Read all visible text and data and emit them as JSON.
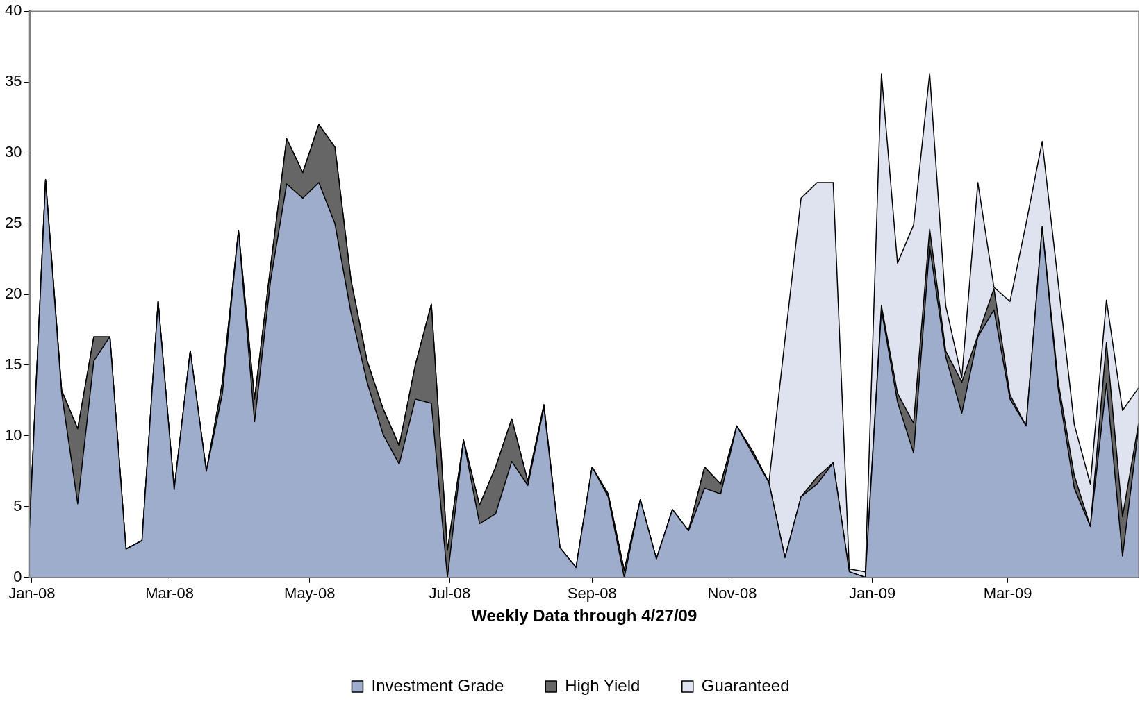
{
  "chart_data": {
    "type": "area",
    "stacked": true,
    "xlabel": "Weekly Data through 4/27/09",
    "legend": "bottom",
    "grid": false,
    "marker": "none",
    "x": [
      "2007-12-31",
      "2008-01-07",
      "2008-01-14",
      "2008-01-21",
      "2008-01-28",
      "2008-02-04",
      "2008-02-11",
      "2008-02-18",
      "2008-02-25",
      "2008-03-03",
      "2008-03-10",
      "2008-03-17",
      "2008-03-24",
      "2008-03-31",
      "2008-04-07",
      "2008-04-14",
      "2008-04-21",
      "2008-04-28",
      "2008-05-05",
      "2008-05-12",
      "2008-05-19",
      "2008-05-26",
      "2008-06-02",
      "2008-06-09",
      "2008-06-16",
      "2008-06-23",
      "2008-06-30",
      "2008-07-07",
      "2008-07-14",
      "2008-07-21",
      "2008-07-28",
      "2008-08-04",
      "2008-08-11",
      "2008-08-18",
      "2008-08-25",
      "2008-09-01",
      "2008-09-08",
      "2008-09-15",
      "2008-09-22",
      "2008-09-29",
      "2008-10-06",
      "2008-10-13",
      "2008-10-20",
      "2008-10-27",
      "2008-11-03",
      "2008-11-10",
      "2008-11-17",
      "2008-11-24",
      "2008-12-01",
      "2008-12-08",
      "2008-12-15",
      "2008-12-22",
      "2008-12-29",
      "2009-01-05",
      "2009-01-12",
      "2009-01-19",
      "2009-01-26",
      "2009-02-02",
      "2009-02-09",
      "2009-02-16",
      "2009-02-23",
      "2009-03-02",
      "2009-03-09",
      "2009-03-16",
      "2009-03-23",
      "2009-03-30",
      "2009-04-06",
      "2009-04-13",
      "2009-04-20",
      "2009-04-27"
    ],
    "xlim": [
      "2007-12-31",
      "2009-04-27"
    ],
    "xticks": [
      {
        "value": "2008-01-01",
        "label": "Jan-08"
      },
      {
        "value": "2008-03-01",
        "label": "Mar-08"
      },
      {
        "value": "2008-05-01",
        "label": "May-08"
      },
      {
        "value": "2008-07-01",
        "label": "Jul-08"
      },
      {
        "value": "2008-09-01",
        "label": "Sep-08"
      },
      {
        "value": "2008-11-01",
        "label": "Nov-08"
      },
      {
        "value": "2009-01-01",
        "label": "Jan-09"
      },
      {
        "value": "2009-03-01",
        "label": "Mar-09"
      }
    ],
    "ylim": [
      0,
      40
    ],
    "yticks": [
      0,
      5,
      10,
      15,
      20,
      25,
      30,
      35,
      40
    ],
    "series": [
      {
        "name": "Investment Grade",
        "color": "#9eadcc",
        "values": [
          3.5,
          28,
          13,
          5.2,
          15.3,
          17,
          2,
          2.6,
          19.5,
          6.2,
          16,
          7.5,
          13,
          24.5,
          11,
          21,
          27.8,
          26.8,
          27.9,
          25,
          18.7,
          13.8,
          10.1,
          8,
          12.6,
          12.3,
          0,
          9.7,
          3.8,
          4.5,
          8.2,
          6.5,
          12,
          2.1,
          0.7,
          7.8,
          5.7,
          0,
          5.5,
          1.3,
          4.8,
          3.3,
          6.3,
          5.9,
          10.7,
          8.7,
          6.7,
          1.4,
          5.7,
          6.6,
          8.1,
          0.4,
          0,
          18.9,
          12.4,
          8.8,
          23.4,
          15.6,
          11.6,
          17,
          18.9,
          12.6,
          10.7,
          24.7,
          13.3,
          6.3,
          3.6,
          13.7,
          1.5,
          10.6
        ]
      },
      {
        "name": "High Yield",
        "color": "#666666",
        "values": [
          0,
          0.1,
          0.2,
          5.3,
          1.7,
          0,
          0,
          0,
          0,
          0,
          0,
          0,
          0.8,
          0,
          1.6,
          1,
          3.2,
          1.8,
          4.1,
          5.4,
          2.3,
          1.5,
          1.8,
          1.3,
          2.4,
          7,
          1.9,
          0,
          1.3,
          3.3,
          3,
          0.3,
          0.2,
          0,
          0,
          0,
          0.2,
          0.5,
          0,
          0,
          0,
          0,
          1.5,
          0.7,
          0,
          0.2,
          0,
          0,
          0,
          0.5,
          0,
          0,
          0,
          0.3,
          0.6,
          2.1,
          1.2,
          0.4,
          2.2,
          0.1,
          1.5,
          0.3,
          0,
          0.1,
          0.5,
          0.9,
          0,
          2.9,
          2.8,
          0.3
        ]
      },
      {
        "name": "Guaranteed",
        "color": "#dfe3ef",
        "values": [
          0,
          0,
          0,
          0,
          0,
          0,
          0,
          0,
          0,
          0,
          0,
          0,
          0,
          0,
          0,
          0,
          0,
          0,
          0,
          0,
          0,
          0,
          0,
          0,
          0,
          0,
          0,
          0,
          0,
          0,
          0,
          0,
          0,
          0,
          0,
          0,
          0,
          0,
          0,
          0,
          0,
          0,
          0,
          0,
          0,
          0,
          0,
          15.4,
          21.1,
          20.8,
          19.8,
          0.2,
          0.4,
          16.4,
          9.2,
          14,
          11,
          3.2,
          0.3,
          10.8,
          0.1,
          6.6,
          14.3,
          6,
          7,
          3.6,
          3,
          3,
          7.5,
          2.5
        ]
      }
    ]
  }
}
